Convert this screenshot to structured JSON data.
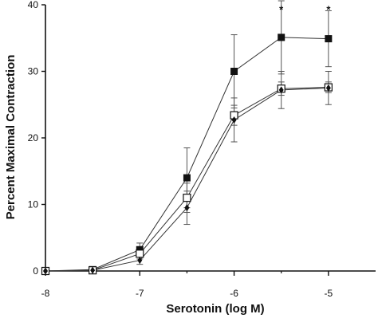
{
  "chart_data": {
    "type": "line",
    "xlabel": "Serotonin (log M)",
    "ylabel": "Percent Maximal Contraction",
    "xlim": [
      -8,
      -4.5
    ],
    "ylim": [
      0,
      40
    ],
    "x_ticks": [
      -8,
      -7,
      -6,
      -5
    ],
    "x_tick_labels": [
      "-8",
      "-7",
      "-6",
      "-5"
    ],
    "y_ticks": [
      0,
      10,
      20,
      30,
      40
    ],
    "y_tick_labels": [
      "0",
      "10",
      "20",
      "30",
      "40"
    ],
    "grid": false,
    "series": [
      {
        "marker": "filled-square",
        "x": [
          -8,
          -7.5,
          -7,
          -6.5,
          -6,
          -5.5,
          -5
        ],
        "y": [
          0,
          0.2,
          3.2,
          14,
          30,
          35.1,
          34.9
        ],
        "err": [
          0,
          0.3,
          1,
          4.5,
          5.5,
          5.5,
          4.2
        ]
      },
      {
        "marker": "open-square",
        "x": [
          -8,
          -7.5,
          -7,
          -6.5,
          -6,
          -5.5,
          -5
        ],
        "y": [
          0,
          0.1,
          2.6,
          11,
          23.4,
          27.4,
          27.6
        ],
        "err": [
          0,
          0.2,
          0.8,
          2.2,
          1.5,
          1,
          0.8
        ]
      },
      {
        "marker": "filled-diamond",
        "x": [
          -8,
          -7.5,
          -7,
          -6.5,
          -6,
          -5.5,
          -5
        ],
        "y": [
          0,
          0.1,
          1.6,
          9.5,
          22.7,
          27.2,
          27.5
        ],
        "err": [
          0,
          0.2,
          0.6,
          2.5,
          3.3,
          2.8,
          2.5
        ]
      }
    ],
    "annotations": [
      {
        "text": "*",
        "x": -5.5,
        "y": 39.2
      },
      {
        "text": "*",
        "x": -5,
        "y": 39.2
      }
    ]
  }
}
